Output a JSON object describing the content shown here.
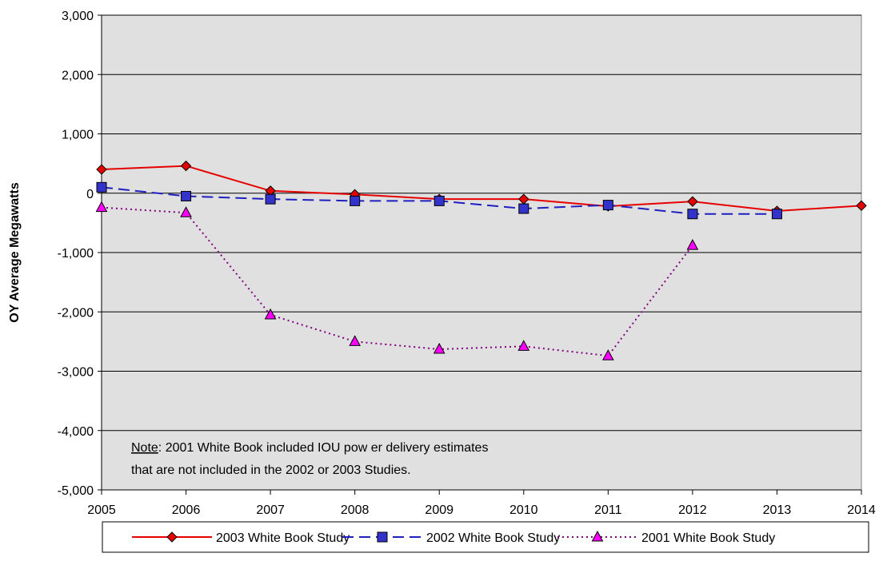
{
  "chart_data": {
    "type": "line",
    "title": "",
    "xlabel": "",
    "ylabel": "OY Average Megawatts",
    "x": [
      2005,
      2006,
      2007,
      2008,
      2009,
      2010,
      2011,
      2012,
      2013,
      2014
    ],
    "x_tick_labels": [
      "2005",
      "2006",
      "2007",
      "2008",
      "2009",
      "2010",
      "2011",
      "2012",
      "2013",
      "2014"
    ],
    "ylim": [
      -5000,
      3000
    ],
    "y_tick_labels": [
      "3,000",
      "2,000",
      "1,000",
      "0",
      "-1,000",
      "-2,000",
      "-3,000",
      "-4,000",
      "-5,000"
    ],
    "y_ticks": [
      3000,
      2000,
      1000,
      0,
      -1000,
      -2000,
      -3000,
      -4000,
      -5000
    ],
    "grid": "horizontal",
    "legend_position": "bottom",
    "series": [
      {
        "name": "2003 White Book Study",
        "color": "#e60000",
        "line_style": "solid",
        "marker": "diamond",
        "marker_color": "#e60000",
        "x": [
          2005,
          2006,
          2007,
          2008,
          2009,
          2010,
          2011,
          2012,
          2013,
          2014
        ],
        "values": [
          400,
          460,
          40,
          -20,
          -100,
          -100,
          -220,
          -140,
          -300,
          -210
        ]
      },
      {
        "name": "2002 White Book Study",
        "color": "#1f1fbf",
        "line_style": "dashed",
        "marker": "square",
        "marker_color": "#3333cc",
        "x": [
          2005,
          2006,
          2007,
          2008,
          2009,
          2010,
          2011,
          2012,
          2013
        ],
        "values": [
          100,
          -50,
          -100,
          -130,
          -130,
          -260,
          -200,
          -350,
          -350
        ]
      },
      {
        "name": "2001 White Book Study",
        "color": "#800080",
        "line_style": "dotted",
        "marker": "triangle",
        "marker_color": "#ff00ff",
        "x": [
          2005,
          2006,
          2007,
          2008,
          2009,
          2010,
          2011,
          2012
        ],
        "values": [
          -240,
          -330,
          -2050,
          -2500,
          -2630,
          -2580,
          -2740,
          -880
        ]
      }
    ],
    "annotation": {
      "underlined": "Note",
      "line1_rest": ": 2001 White Book included IOU pow er delivery estimates",
      "line2": "that are not included in the 2002 or 2003 Studies."
    }
  }
}
